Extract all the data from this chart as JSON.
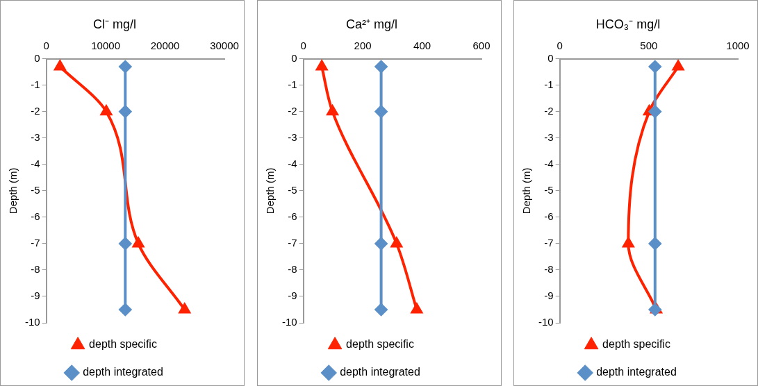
{
  "chart_data": [
    {
      "type": "line",
      "title": "Cl⁻ mg/l",
      "ylabel": "Depth (m)",
      "xlim": [
        0,
        30000
      ],
      "xticks": [
        0,
        10000,
        20000,
        30000
      ],
      "ylim": [
        -10,
        0
      ],
      "yticks": [
        0,
        -1,
        -2,
        -3,
        -4,
        -5,
        -6,
        -7,
        -8,
        -9,
        -10
      ],
      "grid": false,
      "legend": "bottom",
      "series": [
        {
          "name": "depth specific",
          "color": "#ff2200",
          "marker": "triangle",
          "x": [
            2300,
            10100,
            15500,
            23300
          ],
          "values": [
            -0.3,
            -2,
            -7,
            -9.5
          ]
        },
        {
          "name": "depth integrated",
          "color": "#5b8fc8",
          "marker": "diamond",
          "x": [
            13300,
            13300,
            13300,
            13300
          ],
          "values": [
            -0.3,
            -2,
            -7,
            -9.5
          ]
        }
      ]
    },
    {
      "type": "line",
      "title": "Ca²⁺ mg/l",
      "ylabel": "Depth (m)",
      "xlim": [
        0,
        600
      ],
      "xticks": [
        0,
        200,
        400,
        600
      ],
      "ylim": [
        -10,
        0
      ],
      "yticks": [
        0,
        -1,
        -2,
        -3,
        -4,
        -5,
        -6,
        -7,
        -8,
        -9,
        -10
      ],
      "grid": false,
      "legend": "bottom",
      "series": [
        {
          "name": "depth specific",
          "color": "#ff2200",
          "marker": "triangle",
          "x": [
            62,
            98,
            314,
            382
          ],
          "values": [
            -0.3,
            -2,
            -7,
            -9.5
          ]
        },
        {
          "name": "depth integrated",
          "color": "#5b8fc8",
          "marker": "diamond",
          "x": [
            262,
            262,
            262,
            262
          ],
          "values": [
            -0.3,
            -2,
            -7,
            -9.5
          ]
        }
      ]
    },
    {
      "type": "line",
      "title": "HCO₃⁻ mg/l",
      "ylabel": "Depth (m)",
      "xlim": [
        0,
        1000
      ],
      "xticks": [
        0,
        500,
        1000
      ],
      "ylim": [
        -10,
        0
      ],
      "yticks": [
        0,
        -1,
        -2,
        -3,
        -4,
        -5,
        -6,
        -7,
        -8,
        -9,
        -10
      ],
      "grid": false,
      "legend": "bottom",
      "series": [
        {
          "name": "depth specific",
          "color": "#ff2200",
          "marker": "triangle",
          "x": [
            665,
            502,
            385,
            542
          ],
          "values": [
            -0.3,
            -2,
            -7,
            -9.5
          ]
        },
        {
          "name": "depth integrated",
          "color": "#5b8fc8",
          "marker": "diamond",
          "x": [
            535,
            535,
            535,
            535
          ],
          "values": [
            -0.3,
            -2,
            -7,
            -9.5
          ]
        }
      ]
    }
  ]
}
